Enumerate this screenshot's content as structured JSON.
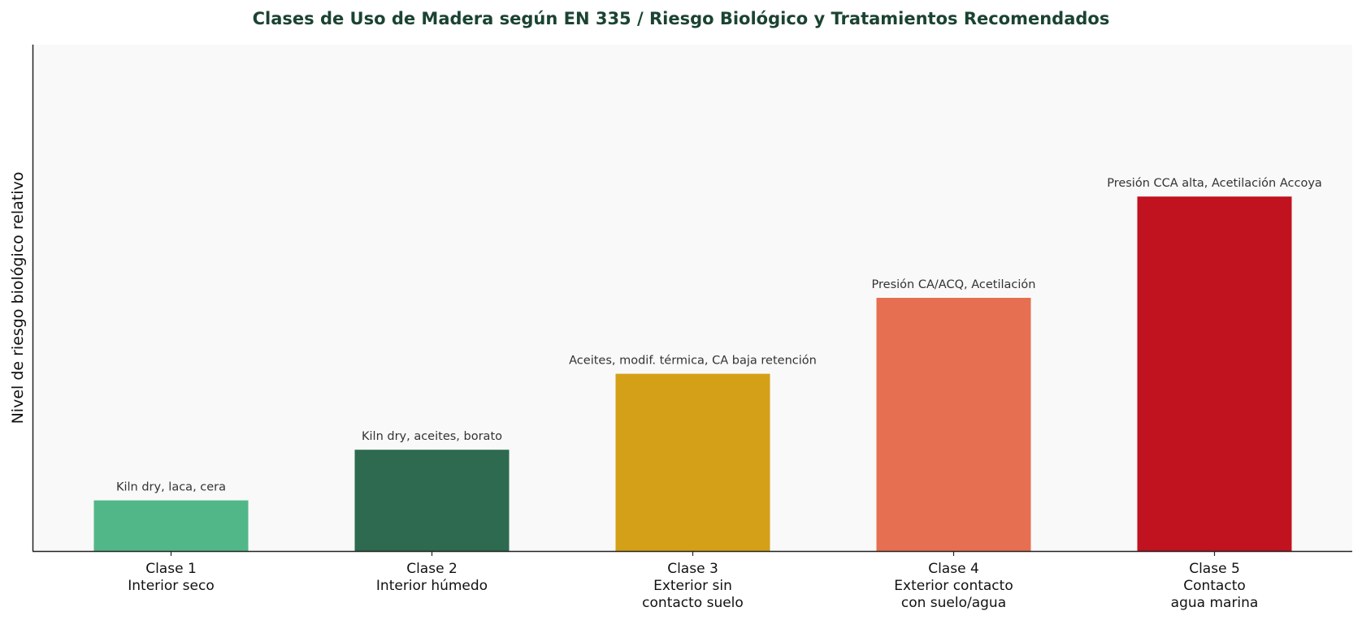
{
  "chart_data": {
    "type": "bar",
    "title": "Clases de Uso de Madera según EN 335 / Riesgo Biológico y Tratamientos Recomendados",
    "xlabel": "",
    "ylabel": "Nivel de riesgo biológico relativo",
    "ylim": [
      0,
      10
    ],
    "yticks_visible": false,
    "grid": false,
    "categories": [
      [
        "Clase 1",
        "Interior seco"
      ],
      [
        "Clase 2",
        "Interior húmedo"
      ],
      [
        "Clase 3",
        "Exterior sin",
        "contacto suelo"
      ],
      [
        "Clase 4",
        "Exterior contacto",
        "con suelo/agua"
      ],
      [
        "Clase 5",
        "Contacto",
        "agua marina"
      ]
    ],
    "values": [
      1,
      2,
      3.5,
      5,
      7
    ],
    "annotations": [
      "Kiln dry, laca, cera",
      "Kiln dry, aceites, borato",
      "Aceites, modif. térmica, CA baja retención",
      "Presión CA/ACQ, Acetilación",
      "Presión CCA alta, Acetilación Accoya"
    ],
    "colors": [
      "#52b788",
      "#2d6a4f",
      "#d4a017",
      "#e76f51",
      "#c1121f"
    ],
    "title_color": "#1b4332",
    "plot_background": "#f9f9f9"
  }
}
